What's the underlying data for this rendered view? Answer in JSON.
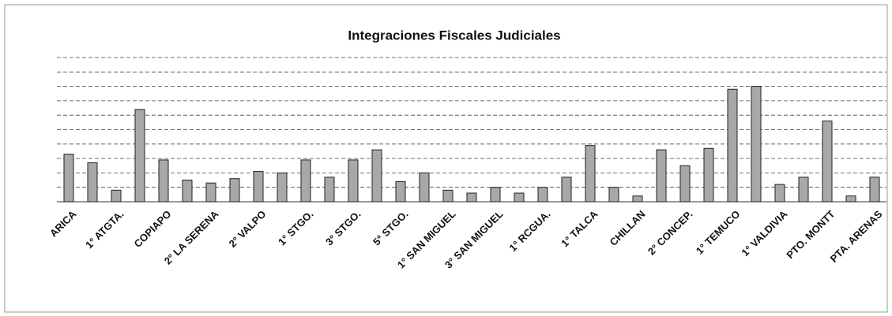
{
  "chart_data": {
    "type": "bar",
    "title": "Integraciones Fiscales Judiciales",
    "categories": [
      "ARICA",
      null,
      "1° ATGTA.",
      null,
      "COPIAPO",
      null,
      "2° LA SERENA",
      null,
      "2° VALPO",
      null,
      "1° STGO.",
      null,
      "3° STGO.",
      null,
      "5° STGO.",
      null,
      "1° SAN MIGUEL",
      null,
      "3° SAN MIGUEL",
      null,
      "1° RCGUA.",
      null,
      "1° TALCA",
      null,
      "CHILLAN",
      null,
      "2° CONCEP.",
      null,
      "1° TEMUCO",
      null,
      "1° VALDIVIA",
      null,
      "PTO. MONTT",
      null,
      "PTA. ARENAS"
    ],
    "values": [
      3.3,
      2.7,
      0.8,
      6.4,
      2.9,
      1.5,
      1.3,
      1.6,
      2.1,
      2.0,
      2.9,
      1.7,
      2.9,
      3.6,
      1.4,
      2.0,
      0.8,
      0.6,
      1.0,
      0.6,
      1.0,
      1.7,
      3.9,
      1.0,
      0.4,
      3.6,
      2.5,
      3.7,
      7.8,
      8.0,
      1.2,
      1.7,
      5.6,
      0.4,
      1.7
    ],
    "color": "#a8a8a8",
    "ylim": [
      0,
      10
    ],
    "yticks": [
      0,
      1,
      2,
      3,
      4,
      5,
      6,
      7,
      8,
      9,
      10
    ],
    "grid": true
  }
}
